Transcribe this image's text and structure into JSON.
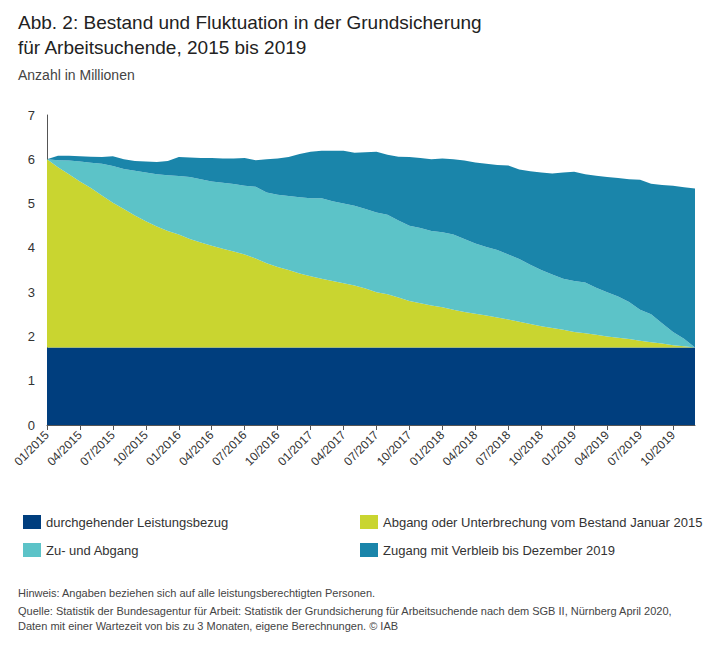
{
  "chart_data": {
    "type": "area",
    "title": "Abb. 2: Bestand und Fluktuation in der Grundsicherung für Arbeitsuchende, 2015 bis 2019",
    "subtitle": "Anzahl in Millionen",
    "annotations": [
      "Hinweis: Angaben beziehen sich auf alle leistungsberechtigten Personen.",
      "Quelle: Statistik der Bundesagentur für Arbeit: Statistik der Grundsicherung für Arbeitsuchende nach dem SGB II, Nürnberg April 2020, Daten mit einer Wartezeit von bis zu 3 Monaten, eigene Berechnungen. © IAB"
    ],
    "stacked": true,
    "grid": false,
    "legend": "bottom",
    "categories": [
      "01/2015",
      null,
      null,
      "04/2015",
      null,
      null,
      "07/2015",
      null,
      null,
      "10/2015",
      null,
      null,
      "01/2016",
      null,
      null,
      "04/2016",
      null,
      null,
      "07/2016",
      null,
      null,
      "10/2016",
      null,
      null,
      "01/2017",
      null,
      null,
      "04/2017",
      null,
      null,
      "07/2017",
      null,
      null,
      "10/2017",
      null,
      null,
      "01/2018",
      null,
      null,
      "04/2018",
      null,
      null,
      "07/2018",
      null,
      null,
      "10/2018",
      null,
      null,
      "01/2019",
      null,
      null,
      "04/2019",
      null,
      null,
      "07/2019",
      null,
      null,
      "10/2019",
      null,
      null
    ],
    "ylim": [
      0,
      7
    ],
    "yticks": [
      0,
      1,
      2,
      3,
      4,
      5,
      6,
      7
    ],
    "series": [
      {
        "name": "durchgehender Leistungsbezug",
        "color": "#003e7e",
        "values": [
          1.75,
          1.75,
          1.75,
          1.75,
          1.75,
          1.75,
          1.75,
          1.75,
          1.75,
          1.75,
          1.75,
          1.75,
          1.75,
          1.75,
          1.75,
          1.75,
          1.75,
          1.75,
          1.75,
          1.75,
          1.75,
          1.75,
          1.75,
          1.75,
          1.75,
          1.75,
          1.75,
          1.75,
          1.75,
          1.75,
          1.75,
          1.75,
          1.75,
          1.75,
          1.75,
          1.75,
          1.75,
          1.75,
          1.75,
          1.75,
          1.75,
          1.75,
          1.75,
          1.75,
          1.75,
          1.75,
          1.75,
          1.75,
          1.75,
          1.75,
          1.75,
          1.75,
          1.75,
          1.75,
          1.75,
          1.75,
          1.75,
          1.75,
          1.75,
          1.75
        ]
      },
      {
        "name": "Abgang oder Unterbrechung vom Bestand Januar 2015",
        "color": "#c9d530",
        "values": [
          4.25,
          4.07,
          3.91,
          3.75,
          3.6,
          3.43,
          3.27,
          3.13,
          2.98,
          2.85,
          2.73,
          2.63,
          2.55,
          2.45,
          2.37,
          2.3,
          2.23,
          2.17,
          2.1,
          2.01,
          1.9,
          1.82,
          1.75,
          1.67,
          1.61,
          1.55,
          1.5,
          1.45,
          1.4,
          1.33,
          1.25,
          1.2,
          1.13,
          1.05,
          1.0,
          0.95,
          0.91,
          0.85,
          0.8,
          0.76,
          0.72,
          0.68,
          0.63,
          0.58,
          0.53,
          0.48,
          0.44,
          0.4,
          0.35,
          0.32,
          0.29,
          0.25,
          0.22,
          0.19,
          0.15,
          0.12,
          0.09,
          0.05,
          0.03,
          0.0
        ]
      },
      {
        "name": "Zu- und Abgang",
        "color": "#5cc3c8",
        "values": [
          0,
          0.16,
          0.31,
          0.45,
          0.57,
          0.72,
          0.83,
          0.9,
          1.01,
          1.1,
          1.18,
          1.26,
          1.32,
          1.4,
          1.43,
          1.45,
          1.49,
          1.52,
          1.55,
          1.62,
          1.6,
          1.63,
          1.67,
          1.72,
          1.76,
          1.82,
          1.8,
          1.8,
          1.8,
          1.8,
          1.8,
          1.8,
          1.74,
          1.7,
          1.7,
          1.68,
          1.69,
          1.7,
          1.65,
          1.59,
          1.55,
          1.52,
          1.47,
          1.42,
          1.34,
          1.27,
          1.21,
          1.15,
          1.15,
          1.15,
          1.06,
          1.0,
          0.93,
          0.84,
          0.7,
          0.63,
          0.46,
          0.3,
          0.17,
          0.0
        ]
      },
      {
        "name": "Zugang mit Verbleib bis Dezember 2019",
        "color": "#1a85aa",
        "values": [
          0,
          0.1,
          0.11,
          0.12,
          0.14,
          0.15,
          0.22,
          0.22,
          0.22,
          0.25,
          0.28,
          0.32,
          0.43,
          0.44,
          0.48,
          0.53,
          0.55,
          0.58,
          0.63,
          0.6,
          0.75,
          0.82,
          0.88,
          0.98,
          1.05,
          1.07,
          1.14,
          1.19,
          1.2,
          1.28,
          1.37,
          1.35,
          1.44,
          1.55,
          1.58,
          1.62,
          1.67,
          1.7,
          1.77,
          1.83,
          1.88,
          1.92,
          2.01,
          2.02,
          2.11,
          2.2,
          2.28,
          2.4,
          2.47,
          2.44,
          2.53,
          2.6,
          2.68,
          2.77,
          2.94,
          2.95,
          3.12,
          3.3,
          3.42,
          3.59
        ]
      }
    ]
  }
}
